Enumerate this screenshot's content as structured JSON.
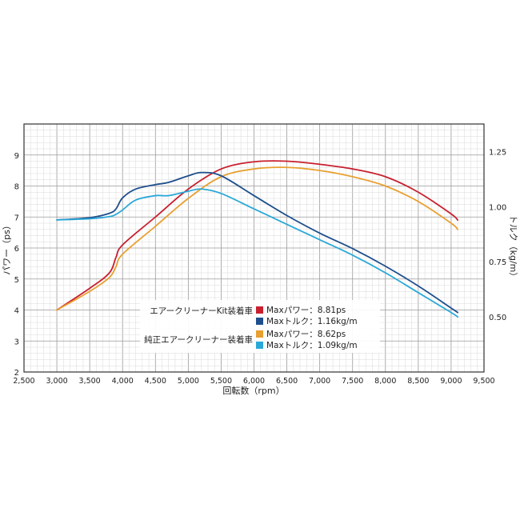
{
  "chart_data": {
    "type": "line",
    "xlabel": "回転数（rpm）",
    "ylabel_left": "パワー（ps）",
    "ylabel_right": "トルク（kg/m）",
    "xlim": [
      2500,
      9500
    ],
    "ylim_left": [
      2,
      10
    ],
    "ylim_right": [
      0.25,
      1.375
    ],
    "x_ticks": [
      "2,500",
      "3,000",
      "3,500",
      "4,000",
      "4,500",
      "5,000",
      "5,500",
      "6,000",
      "6,500",
      "7,000",
      "7,500",
      "8,000",
      "8,500",
      "9,000",
      "9,500"
    ],
    "y_left_ticks": [
      "2",
      "3",
      "4",
      "5",
      "6",
      "7",
      "8",
      "9"
    ],
    "y_right_ticks": [
      "0.50",
      "0.75",
      "1.00",
      "1.25"
    ],
    "grid": true,
    "legend": {
      "groups": [
        {
          "label": "エアークリーナーKit装着車",
          "entries": [
            {
              "color": "#c8202f",
              "text": "Maxパワー：8.81ps"
            },
            {
              "color": "#1e4f8c",
              "text": "Maxトルク：1.16kg/m"
            }
          ]
        },
        {
          "label": "純正エアークリーナー装着車",
          "entries": [
            {
              "color": "#e8a030",
              "text": "Maxパワー：8.62ps"
            },
            {
              "color": "#2aa8d8",
              "text": "Maxトルク：1.09kg/m"
            }
          ]
        }
      ]
    },
    "series": [
      {
        "axis": "left",
        "color": "#c8202f",
        "x": [
          3000,
          3500,
          3800,
          3900,
          4000,
          4500,
          5000,
          5500,
          6000,
          6500,
          7000,
          7500,
          8000,
          8500,
          9000,
          9100
        ],
        "values": [
          4.0,
          4.7,
          5.2,
          5.7,
          6.1,
          7.0,
          7.9,
          8.55,
          8.78,
          8.8,
          8.7,
          8.55,
          8.3,
          7.8,
          7.1,
          6.9
        ]
      },
      {
        "axis": "left",
        "color": "#e8a030",
        "x": [
          3000,
          3500,
          3800,
          3900,
          4000,
          4500,
          5000,
          5500,
          6000,
          6500,
          7000,
          7500,
          8000,
          8500,
          9000,
          9100
        ],
        "values": [
          4.0,
          4.6,
          5.05,
          5.4,
          5.8,
          6.7,
          7.6,
          8.3,
          8.55,
          8.6,
          8.5,
          8.3,
          8.0,
          7.5,
          6.8,
          6.6
        ]
      },
      {
        "axis": "right",
        "color": "#1e4f8c",
        "x": [
          3000,
          3500,
          3800,
          3900,
          4000,
          4200,
          4500,
          4700,
          5000,
          5200,
          5500,
          6000,
          6500,
          7000,
          7500,
          8000,
          8500,
          9000,
          9100
        ],
        "values": [
          0.94,
          0.95,
          0.97,
          0.99,
          1.04,
          1.08,
          1.1,
          1.11,
          1.14,
          1.155,
          1.14,
          1.05,
          0.96,
          0.88,
          0.81,
          0.73,
          0.64,
          0.54,
          0.52
        ]
      },
      {
        "axis": "right",
        "color": "#2aa8d8",
        "x": [
          3000,
          3500,
          3800,
          3900,
          4000,
          4200,
          4500,
          4700,
          5000,
          5200,
          5500,
          6000,
          6500,
          7000,
          7500,
          8000,
          8500,
          9000,
          9100
        ],
        "values": [
          0.94,
          0.945,
          0.955,
          0.965,
          0.985,
          1.03,
          1.05,
          1.05,
          1.07,
          1.08,
          1.06,
          0.99,
          0.92,
          0.85,
          0.78,
          0.7,
          0.61,
          0.52,
          0.5
        ]
      }
    ]
  }
}
